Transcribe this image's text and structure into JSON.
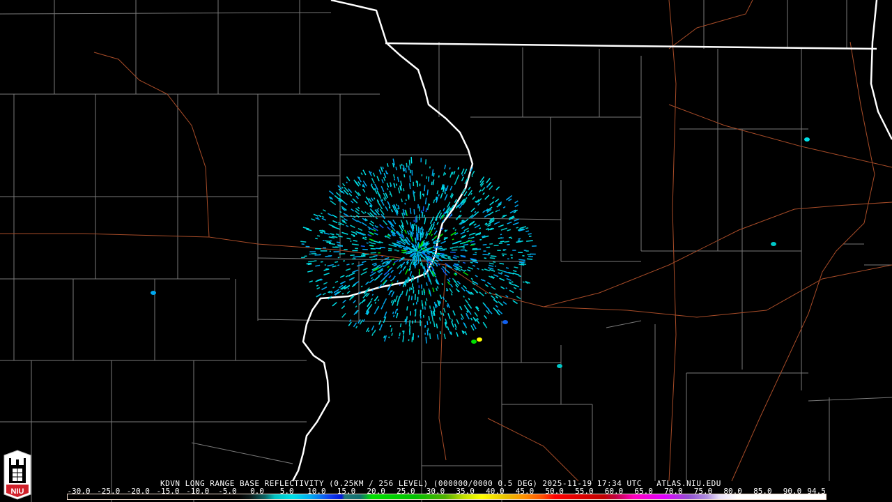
{
  "product": {
    "title": "KDVN LONG RANGE BASE REFLECTIVITY (0.25KM / 256 LEVEL) (000000/0000 0.5 DEG) 2025-11-19 17:34 UTC   ATLAS.NIU.EDU",
    "station": "KDVN",
    "datetime": "2025-11-19 17:34 UTC",
    "elevation": "0.5 DEG",
    "source": "ATLAS.NIU.EDU"
  },
  "logo": {
    "text": "NIU"
  },
  "colorbar": {
    "units_min": -30.0,
    "units_max": 94.5,
    "tick_labels": [
      "-30.0",
      "-25.0",
      "-20.0",
      "-15.0",
      "-10.0",
      "-5.0",
      "0.0",
      "5.0",
      "10.0",
      "15.0",
      "20.0",
      "25.0",
      "30.0",
      "35.0",
      "40.0",
      "45.0",
      "50.0",
      "55.0",
      "60.0",
      "65.0",
      "70.0",
      "75.0",
      "80.0",
      "85.0",
      "90.0",
      "94.5"
    ],
    "stops": [
      {
        "v": -30,
        "c": "#000000"
      },
      {
        "v": -2,
        "c": "#000000"
      },
      {
        "v": 0,
        "c": "#0a1a1a"
      },
      {
        "v": 2.5,
        "c": "#0a6a6a"
      },
      {
        "v": 4,
        "c": "#00c0c0"
      },
      {
        "v": 7,
        "c": "#00e0e8"
      },
      {
        "v": 10,
        "c": "#00a8f0"
      },
      {
        "v": 13,
        "c": "#1040f0"
      },
      {
        "v": 15,
        "c": "#0018d8"
      },
      {
        "v": 15.5,
        "c": "#207878"
      },
      {
        "v": 18,
        "c": "#107070"
      },
      {
        "v": 20,
        "c": "#00e000"
      },
      {
        "v": 27,
        "c": "#00c000"
      },
      {
        "v": 32,
        "c": "#50b000"
      },
      {
        "v": 35,
        "c": "#c0e000"
      },
      {
        "v": 38,
        "c": "#ffff00"
      },
      {
        "v": 42,
        "c": "#e8c000"
      },
      {
        "v": 45,
        "c": "#ff9000"
      },
      {
        "v": 48,
        "c": "#ff5000"
      },
      {
        "v": 50,
        "c": "#ff0000"
      },
      {
        "v": 58,
        "c": "#c00000"
      },
      {
        "v": 60,
        "c": "#c00040"
      },
      {
        "v": 63,
        "c": "#ff00c0"
      },
      {
        "v": 68,
        "c": "#e000ff"
      },
      {
        "v": 72,
        "c": "#9050d0"
      },
      {
        "v": 75,
        "c": "#b090e0"
      },
      {
        "v": 77,
        "c": "#e8e0f8"
      },
      {
        "v": 80,
        "c": "#ffffff"
      },
      {
        "v": 94.5,
        "c": "#ffffff"
      }
    ]
  },
  "colors": {
    "state_border": "#ffffff",
    "county_lines": "#808080",
    "highways": "#b0502a",
    "background": "#000000"
  }
}
